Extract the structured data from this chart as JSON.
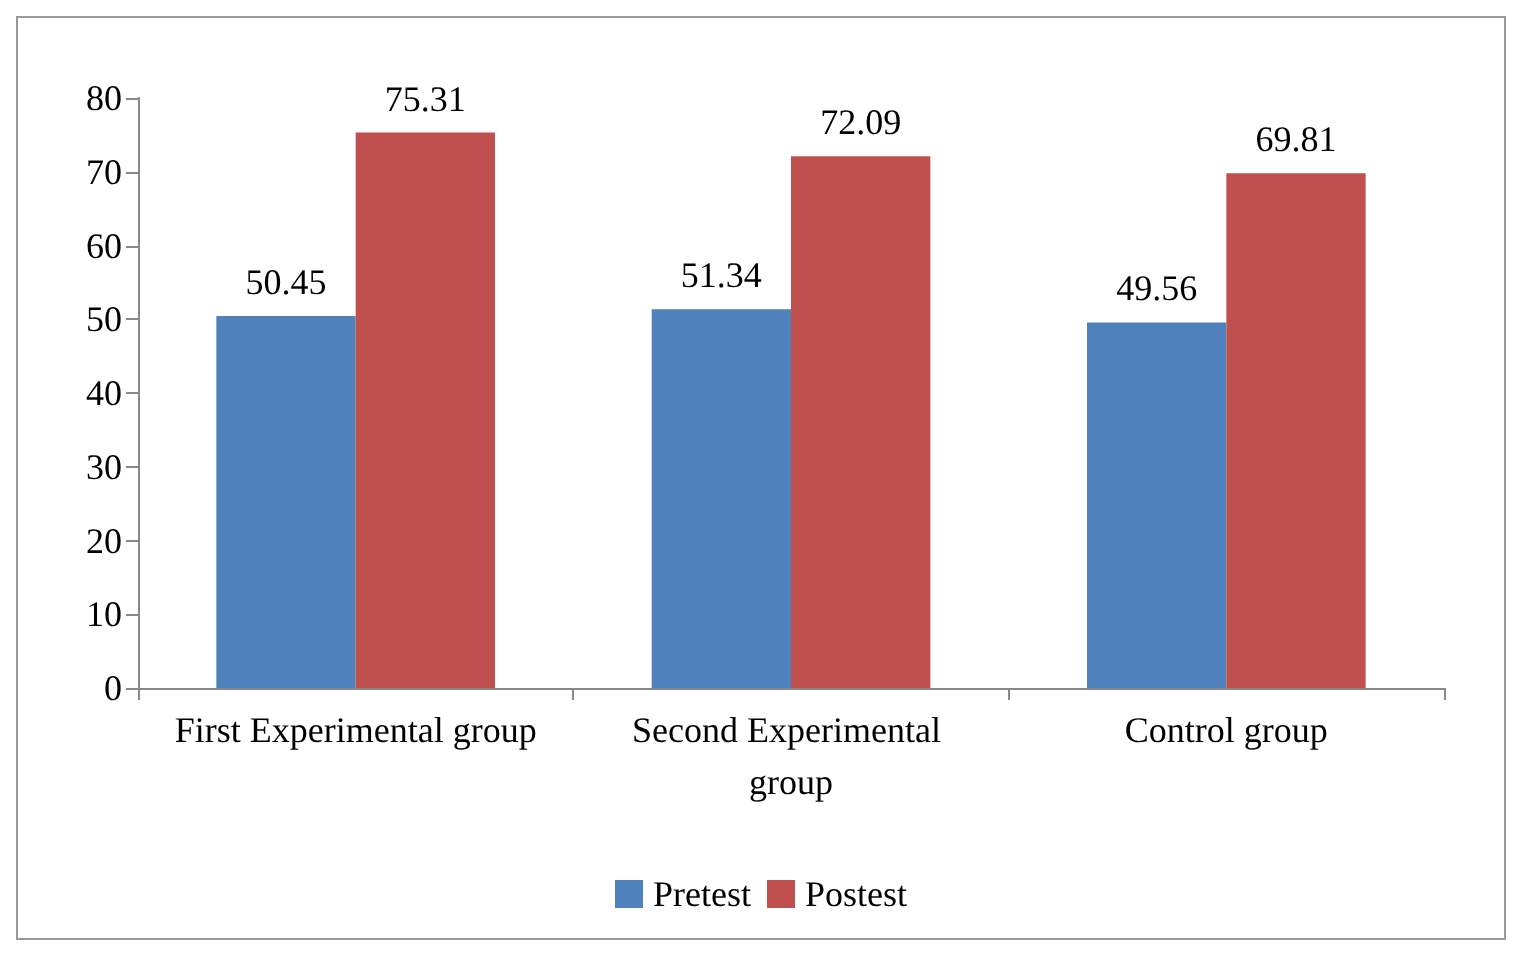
{
  "chart_data": {
    "type": "bar",
    "categories": [
      "First Experimental group",
      "Second Experimental group",
      "Control group"
    ],
    "series": [
      {
        "name": "Pretest",
        "color": "#4f81bd",
        "values": [
          50.45,
          51.34,
          49.56
        ]
      },
      {
        "name": "Postest",
        "color": "#c0504d",
        "values": [
          75.31,
          72.09,
          69.81
        ]
      }
    ],
    "ylim": [
      0,
      80
    ],
    "yticks": [
      0,
      10,
      20,
      30,
      40,
      50,
      60,
      70,
      80
    ],
    "data_labels": true,
    "grid": false,
    "legend": "bottom"
  }
}
